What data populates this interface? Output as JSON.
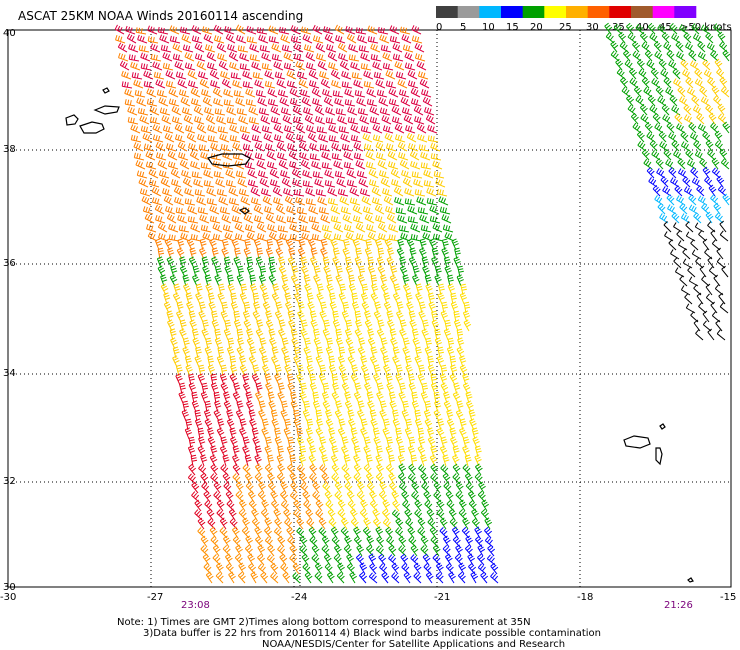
{
  "title": "ASCAT 25KM NOAA Winds 20160114 ascending",
  "legend": {
    "colors": [
      "#404040",
      "#9a9a9a",
      "#00b8ff",
      "#0000ff",
      "#00a000",
      "#ffff00",
      "#ffb000",
      "#ff6000",
      "#e00000",
      "#a05a2c",
      "#ff00ff",
      "#8000ff"
    ],
    "labels": [
      "0",
      "5",
      "10",
      "15",
      "20",
      "25",
      "30",
      "35",
      "40",
      "45",
      ">50 knots"
    ]
  },
  "axes": {
    "x_ticks": [
      "-30",
      "-27",
      "-24",
      "-21",
      "-18",
      "-15"
    ],
    "y_ticks": [
      "40",
      "38",
      "36",
      "34",
      "32",
      "30"
    ]
  },
  "pass_times": {
    "left": "23:08",
    "right": "21:26",
    "color": "#7a007a"
  },
  "notes": {
    "line1": "Note: 1) Times are GMT 2)Times along bottom correspond to measurement at 35N",
    "line2": "3)Data buffer is 22 hrs from 20160114 4) Black wind barbs indicate possible contamination",
    "line3": "NOAA/NESDIS/Center for Satellite Applications and Research"
  }
}
